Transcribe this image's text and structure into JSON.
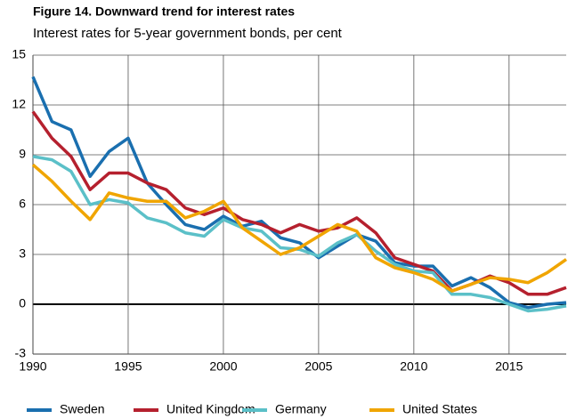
{
  "chart_data": {
    "type": "line",
    "title": "Figure 14. Downward trend for interest rates",
    "subtitle": "Interest rates for 5-year government bonds, per cent",
    "x": [
      1990,
      1991,
      1992,
      1993,
      1994,
      1995,
      1996,
      1997,
      1998,
      1999,
      2000,
      2001,
      2002,
      2003,
      2004,
      2005,
      2006,
      2007,
      2008,
      2009,
      2010,
      2011,
      2012,
      2013,
      2014,
      2015,
      2016,
      2017,
      2018
    ],
    "series": [
      {
        "name": "Sweden",
        "color": "#1a6faf",
        "values": [
          13.7,
          11.0,
          10.5,
          7.7,
          9.2,
          10.0,
          7.3,
          6.0,
          4.8,
          4.5,
          5.3,
          4.7,
          5.0,
          4.0,
          3.7,
          2.8,
          3.5,
          4.2,
          3.8,
          2.5,
          2.3,
          2.3,
          1.1,
          1.6,
          1.0,
          0.1,
          -0.2,
          0.0,
          0.1
        ]
      },
      {
        "name": "United Kingdom",
        "color": "#b5202e",
        "values": [
          11.6,
          10.0,
          8.9,
          6.9,
          7.9,
          7.9,
          7.3,
          6.9,
          5.8,
          5.4,
          5.8,
          5.1,
          4.8,
          4.3,
          4.8,
          4.4,
          4.6,
          5.2,
          4.3,
          2.8,
          2.4,
          2.0,
          0.8,
          1.2,
          1.7,
          1.3,
          0.6,
          0.6,
          1.0
        ]
      },
      {
        "name": "Germany",
        "color": "#5bc0c8",
        "values": [
          8.9,
          8.7,
          8.0,
          6.0,
          6.3,
          6.1,
          5.2,
          4.9,
          4.3,
          4.1,
          5.1,
          4.6,
          4.4,
          3.4,
          3.3,
          2.9,
          3.7,
          4.2,
          3.2,
          2.4,
          2.0,
          1.9,
          0.6,
          0.6,
          0.4,
          0.0,
          -0.4,
          -0.3,
          -0.1
        ]
      },
      {
        "name": "United States",
        "color": "#f0a500",
        "values": [
          8.4,
          7.4,
          6.2,
          5.1,
          6.7,
          6.4,
          6.2,
          6.2,
          5.2,
          5.6,
          6.2,
          4.6,
          3.8,
          3.0,
          3.4,
          4.1,
          4.8,
          4.4,
          2.8,
          2.2,
          1.9,
          1.5,
          0.8,
          1.2,
          1.6,
          1.5,
          1.3,
          1.9,
          2.7
        ]
      }
    ],
    "xlim": [
      1990,
      2018
    ],
    "xticks": [
      1990,
      1995,
      2000,
      2005,
      2010,
      2015
    ],
    "ylim": [
      -3,
      15
    ],
    "yticks": [
      -3,
      0,
      3,
      6,
      9,
      12,
      15
    ],
    "grid": true,
    "legend": "bottom"
  }
}
